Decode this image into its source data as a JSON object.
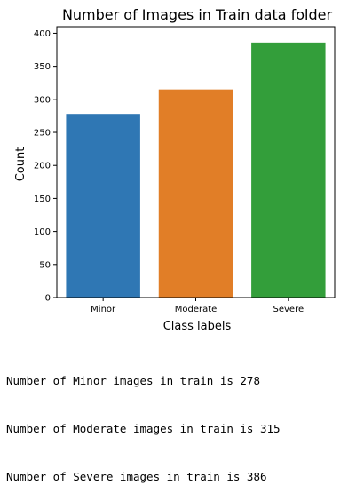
{
  "chart_data": {
    "type": "bar",
    "title": "Number of Images in Train data folder",
    "xlabel": "Class labels",
    "ylabel": "Count",
    "categories": [
      "Minor",
      "Moderate",
      "Severe"
    ],
    "values": [
      278,
      315,
      386
    ],
    "colors": [
      "#2f77b4",
      "#e17e27",
      "#339e3a"
    ],
    "ylim": [
      0,
      410
    ],
    "yticks": [
      0,
      50,
      100,
      150,
      200,
      250,
      300,
      350,
      400
    ],
    "grid": false,
    "legend": "none"
  },
  "output": {
    "lines": [
      "Number of Minor images in train is 278",
      "Number of Moderate images in train is 315",
      "Number of Severe images in train is 386"
    ]
  }
}
